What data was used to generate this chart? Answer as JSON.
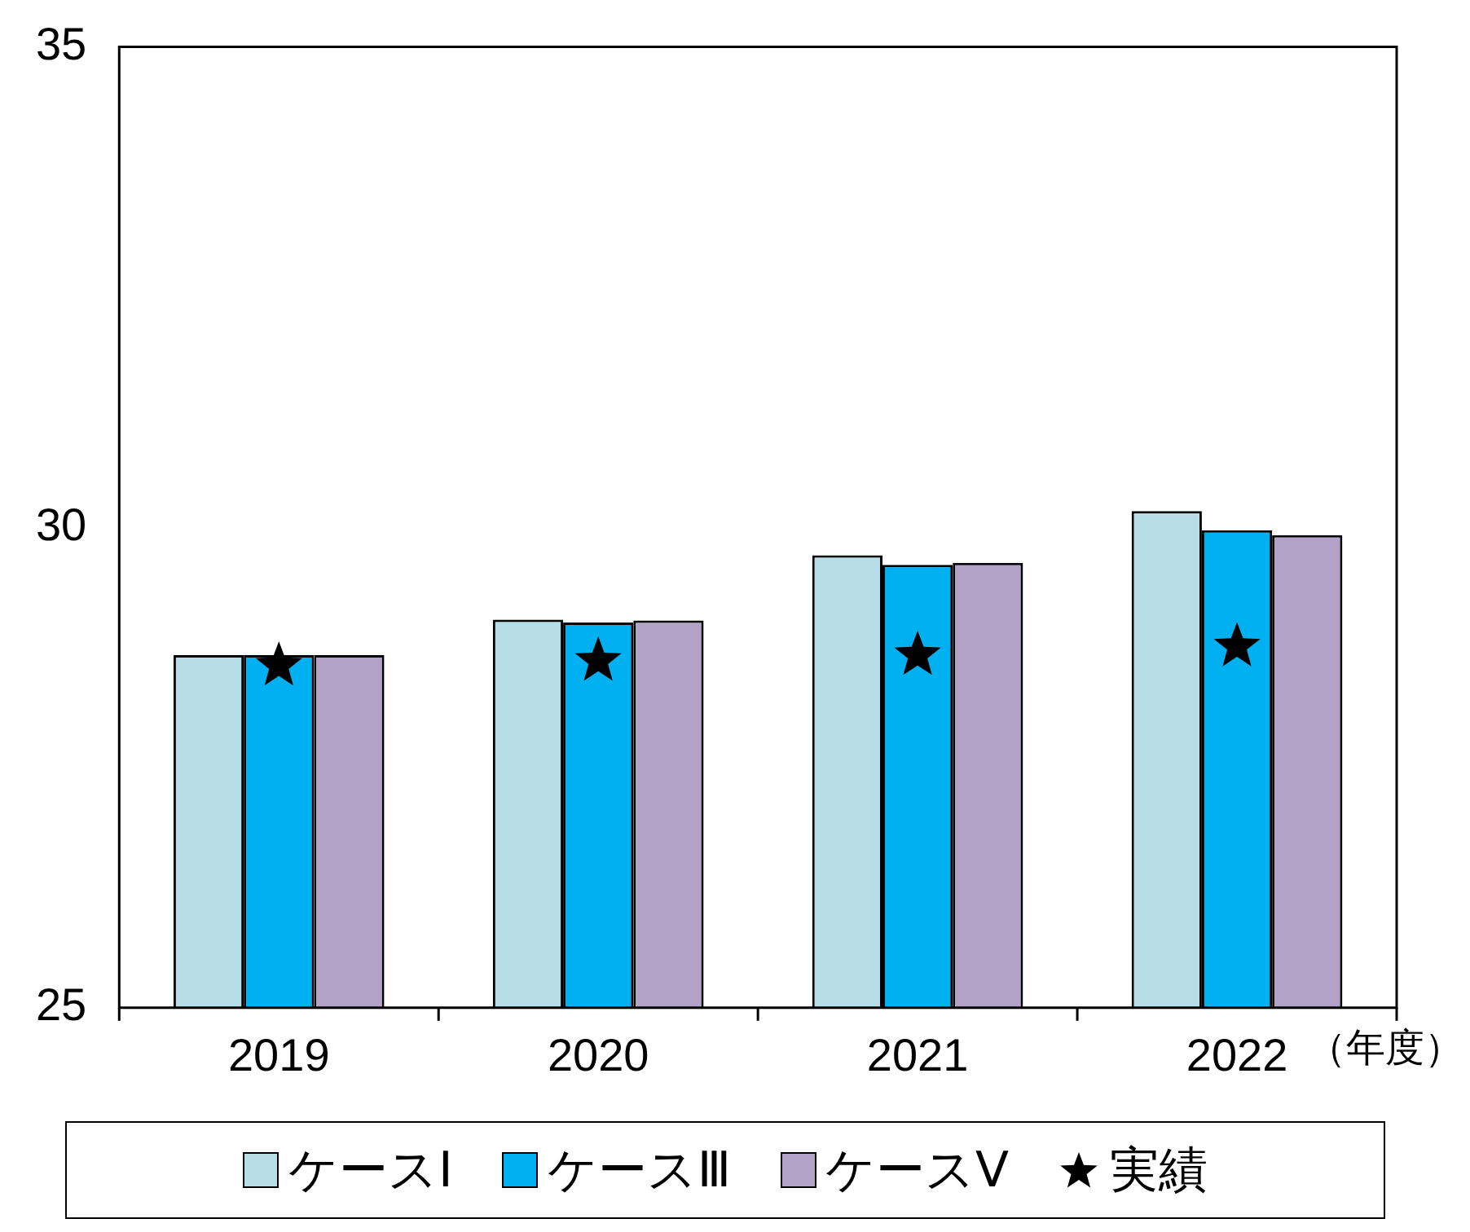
{
  "chart_data": {
    "type": "bar",
    "categories": [
      "2019",
      "2020",
      "2021",
      "2022"
    ],
    "series": [
      {
        "name": "ケースⅠ",
        "color": "#b7dde8",
        "values": [
          28.67,
          29.04,
          29.71,
          30.17
        ]
      },
      {
        "name": "ケースⅢ",
        "color": "#00b0f0",
        "values": [
          28.67,
          29.01,
          29.61,
          29.97
        ]
      },
      {
        "name": "ケースⅤ",
        "color": "#b3a2c7",
        "values": [
          28.67,
          29.03,
          29.63,
          29.92
        ]
      },
      {
        "name": "実績",
        "type": "scatter",
        "color": "#000000",
        "marker": "star",
        "values": [
          28.56,
          28.61,
          28.67,
          28.76
        ]
      }
    ],
    "ylim": [
      25,
      35
    ],
    "yticks": [
      25,
      30,
      35
    ],
    "grid": false,
    "legend": "bottom",
    "annotations": [
      "（年度）"
    ]
  }
}
